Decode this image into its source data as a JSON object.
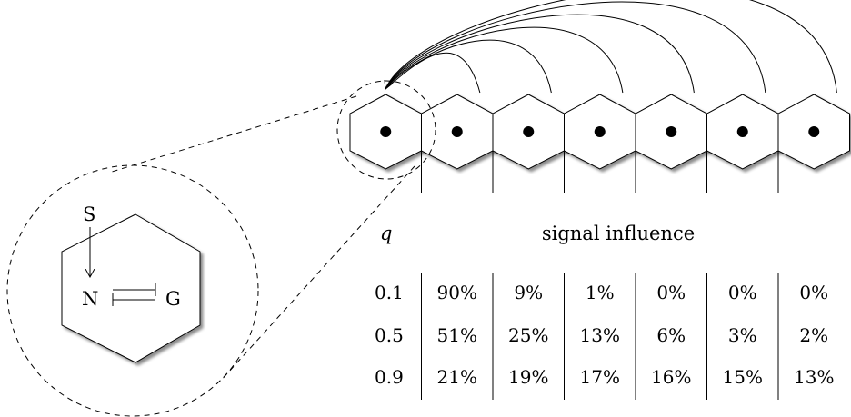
{
  "zoom_cell": {
    "label_s": "S",
    "label_n": "N",
    "label_g": "G"
  },
  "table": {
    "q_header": "q",
    "title": "signal influence",
    "rows": [
      {
        "q": "0.1",
        "values": [
          "90%",
          "9%",
          "1%",
          "0%",
          "0%",
          "0%"
        ]
      },
      {
        "q": "0.5",
        "values": [
          "51%",
          "25%",
          "13%",
          "6%",
          "3%",
          "2%"
        ]
      },
      {
        "q": "0.9",
        "values": [
          "21%",
          "19%",
          "17%",
          "16%",
          "15%",
          "13%"
        ]
      }
    ]
  },
  "cells": {
    "count": 7
  }
}
